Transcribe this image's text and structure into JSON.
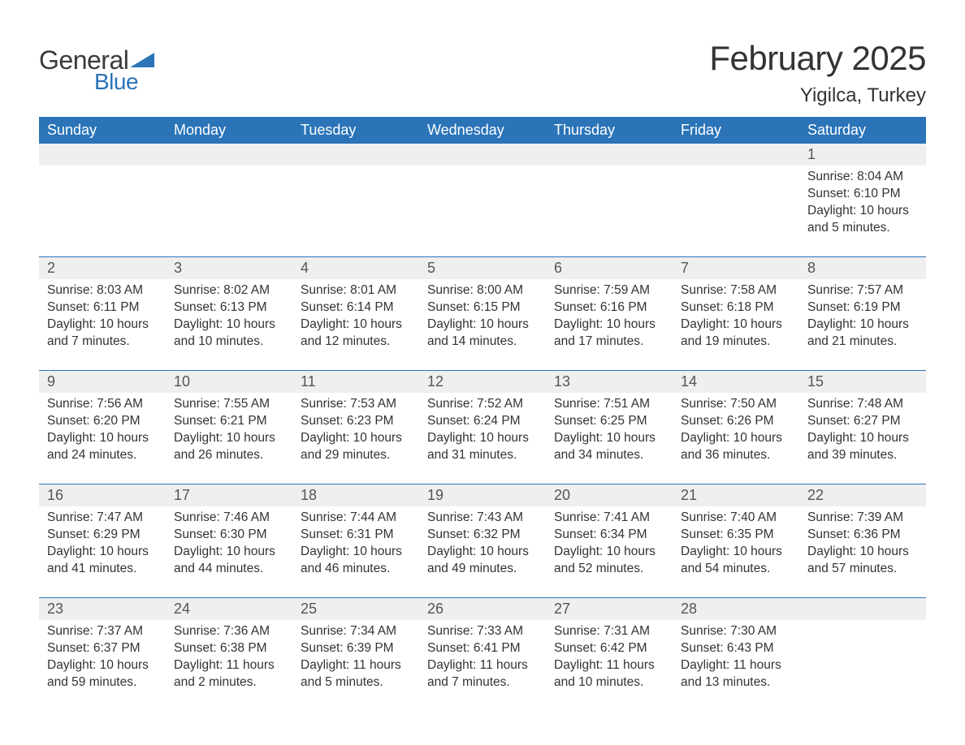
{
  "logo": {
    "word1": "General",
    "word2": "Blue"
  },
  "title": "February 2025",
  "subtitle": "Yigilca, Turkey",
  "colors": {
    "brand_blue": "#2b74b8",
    "header_text": "#ffffff",
    "daynum_bg": "#efefef",
    "body_text": "#333333",
    "daynum_text": "#555555",
    "page_bg": "#ffffff"
  },
  "typography": {
    "title_fontsize": 42,
    "subtitle_fontsize": 24,
    "dow_fontsize": 18,
    "daynum_fontsize": 18,
    "body_fontsize": 15.5,
    "logo_general_fontsize": 32,
    "logo_blue_fontsize": 28
  },
  "day_of_week": [
    "Sunday",
    "Monday",
    "Tuesday",
    "Wednesday",
    "Thursday",
    "Friday",
    "Saturday"
  ],
  "weeks": [
    [
      null,
      null,
      null,
      null,
      null,
      null,
      {
        "n": "1",
        "sunrise": "Sunrise: 8:04 AM",
        "sunset": "Sunset: 6:10 PM",
        "daylight": "Daylight: 10 hours and 5 minutes."
      }
    ],
    [
      {
        "n": "2",
        "sunrise": "Sunrise: 8:03 AM",
        "sunset": "Sunset: 6:11 PM",
        "daylight": "Daylight: 10 hours and 7 minutes."
      },
      {
        "n": "3",
        "sunrise": "Sunrise: 8:02 AM",
        "sunset": "Sunset: 6:13 PM",
        "daylight": "Daylight: 10 hours and 10 minutes."
      },
      {
        "n": "4",
        "sunrise": "Sunrise: 8:01 AM",
        "sunset": "Sunset: 6:14 PM",
        "daylight": "Daylight: 10 hours and 12 minutes."
      },
      {
        "n": "5",
        "sunrise": "Sunrise: 8:00 AM",
        "sunset": "Sunset: 6:15 PM",
        "daylight": "Daylight: 10 hours and 14 minutes."
      },
      {
        "n": "6",
        "sunrise": "Sunrise: 7:59 AM",
        "sunset": "Sunset: 6:16 PM",
        "daylight": "Daylight: 10 hours and 17 minutes."
      },
      {
        "n": "7",
        "sunrise": "Sunrise: 7:58 AM",
        "sunset": "Sunset: 6:18 PM",
        "daylight": "Daylight: 10 hours and 19 minutes."
      },
      {
        "n": "8",
        "sunrise": "Sunrise: 7:57 AM",
        "sunset": "Sunset: 6:19 PM",
        "daylight": "Daylight: 10 hours and 21 minutes."
      }
    ],
    [
      {
        "n": "9",
        "sunrise": "Sunrise: 7:56 AM",
        "sunset": "Sunset: 6:20 PM",
        "daylight": "Daylight: 10 hours and 24 minutes."
      },
      {
        "n": "10",
        "sunrise": "Sunrise: 7:55 AM",
        "sunset": "Sunset: 6:21 PM",
        "daylight": "Daylight: 10 hours and 26 minutes."
      },
      {
        "n": "11",
        "sunrise": "Sunrise: 7:53 AM",
        "sunset": "Sunset: 6:23 PM",
        "daylight": "Daylight: 10 hours and 29 minutes."
      },
      {
        "n": "12",
        "sunrise": "Sunrise: 7:52 AM",
        "sunset": "Sunset: 6:24 PM",
        "daylight": "Daylight: 10 hours and 31 minutes."
      },
      {
        "n": "13",
        "sunrise": "Sunrise: 7:51 AM",
        "sunset": "Sunset: 6:25 PM",
        "daylight": "Daylight: 10 hours and 34 minutes."
      },
      {
        "n": "14",
        "sunrise": "Sunrise: 7:50 AM",
        "sunset": "Sunset: 6:26 PM",
        "daylight": "Daylight: 10 hours and 36 minutes."
      },
      {
        "n": "15",
        "sunrise": "Sunrise: 7:48 AM",
        "sunset": "Sunset: 6:27 PM",
        "daylight": "Daylight: 10 hours and 39 minutes."
      }
    ],
    [
      {
        "n": "16",
        "sunrise": "Sunrise: 7:47 AM",
        "sunset": "Sunset: 6:29 PM",
        "daylight": "Daylight: 10 hours and 41 minutes."
      },
      {
        "n": "17",
        "sunrise": "Sunrise: 7:46 AM",
        "sunset": "Sunset: 6:30 PM",
        "daylight": "Daylight: 10 hours and 44 minutes."
      },
      {
        "n": "18",
        "sunrise": "Sunrise: 7:44 AM",
        "sunset": "Sunset: 6:31 PM",
        "daylight": "Daylight: 10 hours and 46 minutes."
      },
      {
        "n": "19",
        "sunrise": "Sunrise: 7:43 AM",
        "sunset": "Sunset: 6:32 PM",
        "daylight": "Daylight: 10 hours and 49 minutes."
      },
      {
        "n": "20",
        "sunrise": "Sunrise: 7:41 AM",
        "sunset": "Sunset: 6:34 PM",
        "daylight": "Daylight: 10 hours and 52 minutes."
      },
      {
        "n": "21",
        "sunrise": "Sunrise: 7:40 AM",
        "sunset": "Sunset: 6:35 PM",
        "daylight": "Daylight: 10 hours and 54 minutes."
      },
      {
        "n": "22",
        "sunrise": "Sunrise: 7:39 AM",
        "sunset": "Sunset: 6:36 PM",
        "daylight": "Daylight: 10 hours and 57 minutes."
      }
    ],
    [
      {
        "n": "23",
        "sunrise": "Sunrise: 7:37 AM",
        "sunset": "Sunset: 6:37 PM",
        "daylight": "Daylight: 10 hours and 59 minutes."
      },
      {
        "n": "24",
        "sunrise": "Sunrise: 7:36 AM",
        "sunset": "Sunset: 6:38 PM",
        "daylight": "Daylight: 11 hours and 2 minutes."
      },
      {
        "n": "25",
        "sunrise": "Sunrise: 7:34 AM",
        "sunset": "Sunset: 6:39 PM",
        "daylight": "Daylight: 11 hours and 5 minutes."
      },
      {
        "n": "26",
        "sunrise": "Sunrise: 7:33 AM",
        "sunset": "Sunset: 6:41 PM",
        "daylight": "Daylight: 11 hours and 7 minutes."
      },
      {
        "n": "27",
        "sunrise": "Sunrise: 7:31 AM",
        "sunset": "Sunset: 6:42 PM",
        "daylight": "Daylight: 11 hours and 10 minutes."
      },
      {
        "n": "28",
        "sunrise": "Sunrise: 7:30 AM",
        "sunset": "Sunset: 6:43 PM",
        "daylight": "Daylight: 11 hours and 13 minutes."
      },
      null
    ]
  ]
}
